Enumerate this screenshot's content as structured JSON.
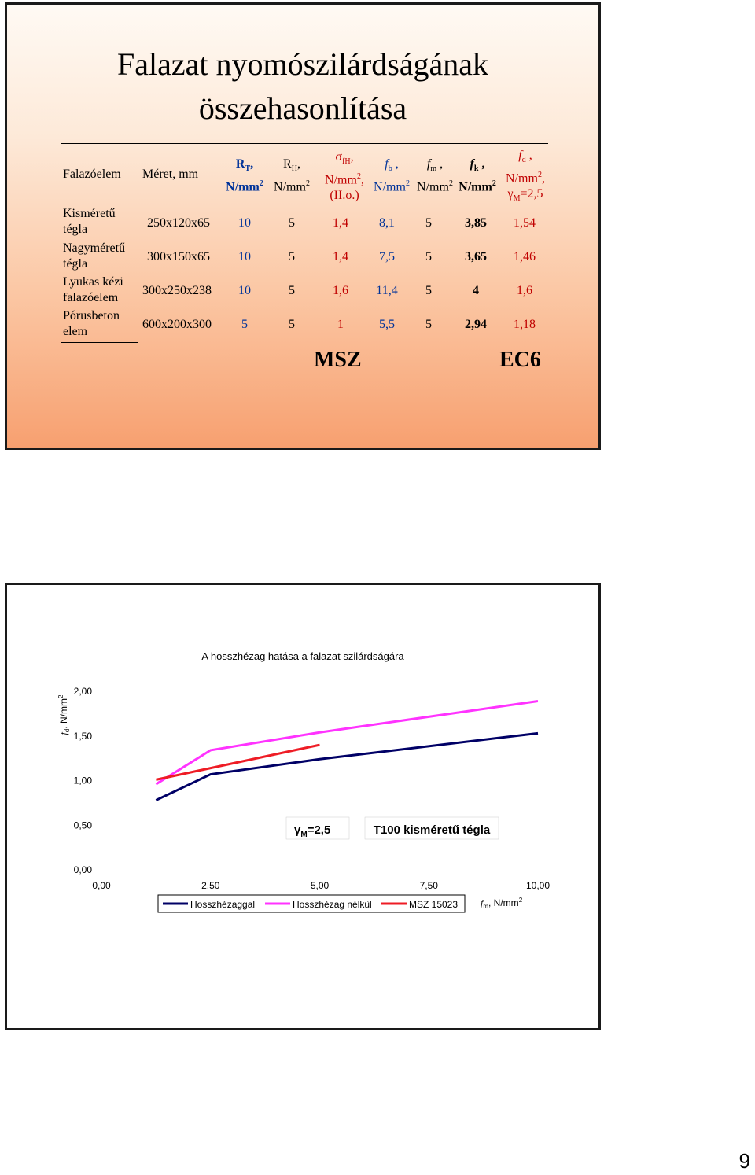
{
  "slide1": {
    "title_line1": "Falazat nyomószilárdságának",
    "title_line2": "összehasonlítása",
    "headers": {
      "col0": "Falazóelem",
      "col1": "Méret, mm",
      "rt_main": "R",
      "rt_sub": "T",
      "rt_unit": "N/mm",
      "rt_sup": "2",
      "rh_main": "R",
      "rh_sub": "H",
      "rh_unit": "N/mm",
      "rh_sup": "2",
      "sigma_main": "σ",
      "sigma_sub": "fH",
      "sigma_unit": "N/mm",
      "sigma_sup": "2",
      "sigma_note": "(II.o.)",
      "fb_main": "f",
      "fb_sub": "b",
      "fb_unit": "N/mm",
      "fb_sup": "2",
      "fm_main": "f",
      "fm_sub": "m",
      "fm_unit": "N/mm",
      "fm_sup": "2",
      "fk_main": "f",
      "fk_sub": "k",
      "fk_unit": "N/mm",
      "fk_sup": "2",
      "fd_main": "f",
      "fd_sub": "d",
      "fd_unit": "N/mm",
      "fd_sup": "2",
      "fd_gamma": "γ",
      "fd_gamma_sub": "M",
      "fd_gamma_val": "=2,5"
    },
    "rows": [
      {
        "name1": "Kisméretű",
        "name2": "tégla",
        "size": "250x120x65",
        "rt": "10",
        "rh": "5",
        "sig": "1,4",
        "fb": "8,1",
        "fm": "5",
        "fk": "3,85",
        "fd": "1,54"
      },
      {
        "name1": "Nagyméretű",
        "name2": "tégla",
        "size": "300x150x65",
        "rt": "10",
        "rh": "5",
        "sig": "1,4",
        "fb": "7,5",
        "fm": "5",
        "fk": "3,65",
        "fd": "1,46"
      },
      {
        "name1": "Lyukas kézi",
        "name2": "falazóelem",
        "size": "300x250x238",
        "rt": "10",
        "rh": "5",
        "sig": "1,6",
        "fb": "11,4",
        "fm": "5",
        "fk": "4",
        "fd": "1,6"
      },
      {
        "name1": "Pórusbeton",
        "name2": "elem",
        "size": "600x200x300",
        "rt": "5",
        "rh": "5",
        "sig": "1",
        "fb": "5,5",
        "fm": "5",
        "fk": "2,94",
        "fd": "1,18"
      }
    ],
    "label_msz": "MSZ",
    "label_ec6": "EC6"
  },
  "slide2": {
    "chart_data": {
      "type": "line",
      "title": "A hosszhézag hatása a falazat szilárdságára",
      "ylabel_main": "f",
      "ylabel_sub": "d",
      "ylabel_unit": ", N/mm",
      "ylabel_sup": "2",
      "xlabel_main": "f",
      "xlabel_sub": "m",
      "xlabel_unit": ", N/mm",
      "xlabel_sup": "2",
      "xlim": [
        0,
        10
      ],
      "ylim": [
        0,
        2
      ],
      "xticks": [
        "0,00",
        "2,50",
        "5,00",
        "7,50",
        "10,00"
      ],
      "yticks": [
        "0,00",
        "0,50",
        "1,00",
        "1,50",
        "2,00"
      ],
      "legend_position": "bottom",
      "series": [
        {
          "name": "Hosszhézaggal",
          "color": "#000066",
          "x": [
            1.25,
            2.5,
            5,
            10
          ],
          "y": [
            0.78,
            1.07,
            1.24,
            1.53
          ]
        },
        {
          "name": "Hosszhézag nélkül",
          "color": "#ff33ff",
          "x": [
            1.25,
            2.5,
            5,
            10
          ],
          "y": [
            0.96,
            1.34,
            1.54,
            1.89
          ]
        },
        {
          "name": "MSZ 15023",
          "color": "#ee1c25",
          "x": [
            1.25,
            5
          ],
          "y": [
            1.01,
            1.4
          ]
        }
      ],
      "annotations": [
        {
          "gamma": "γ",
          "gamma_sub": "M",
          "gamma_val": "=2,5"
        },
        {
          "text": "T100 kisméretű tégla"
        }
      ]
    }
  },
  "page_number": "9"
}
